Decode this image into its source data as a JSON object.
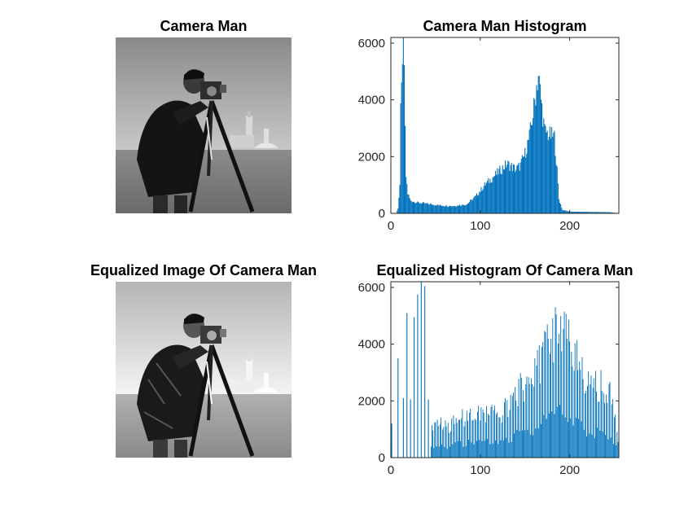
{
  "panels": {
    "original_image": {
      "title": "Camera Man"
    },
    "original_histogram": {
      "title": "Camera Man Histogram"
    },
    "equalized_image": {
      "title": "Equalized Image Of Camera Man"
    },
    "equalized_histogram": {
      "title": "Equalized Histogram Of Camera Man"
    }
  },
  "chart_data": [
    {
      "type": "bar",
      "title": "Camera Man Histogram",
      "xlabel": "",
      "ylabel": "",
      "xlim": [
        0,
        255
      ],
      "ylim": [
        0,
        6200
      ],
      "xticks": [
        0,
        100,
        200
      ],
      "yticks": [
        0,
        2000,
        4000,
        6000
      ],
      "color": "#0072BD",
      "bins": [
        0,
        255
      ],
      "anchors": [
        [
          0,
          0
        ],
        [
          6,
          0
        ],
        [
          8,
          180
        ],
        [
          10,
          900
        ],
        [
          11,
          3600
        ],
        [
          12,
          5000
        ],
        [
          13,
          4700
        ],
        [
          14,
          6200
        ],
        [
          15,
          5300
        ],
        [
          16,
          2800
        ],
        [
          17,
          1300
        ],
        [
          19,
          700
        ],
        [
          22,
          450
        ],
        [
          30,
          380
        ],
        [
          45,
          320
        ],
        [
          55,
          280
        ],
        [
          70,
          260
        ],
        [
          85,
          320
        ],
        [
          95,
          600
        ],
        [
          105,
          1000
        ],
        [
          115,
          1300
        ],
        [
          125,
          1600
        ],
        [
          130,
          1750
        ],
        [
          135,
          1650
        ],
        [
          140,
          1550
        ],
        [
          145,
          1700
        ],
        [
          150,
          2100
        ],
        [
          155,
          2700
        ],
        [
          160,
          3700
        ],
        [
          163,
          4500
        ],
        [
          165,
          4900
        ],
        [
          168,
          4000
        ],
        [
          172,
          2900
        ],
        [
          178,
          2750
        ],
        [
          183,
          2700
        ],
        [
          186,
          1500
        ],
        [
          188,
          500
        ],
        [
          192,
          120
        ],
        [
          200,
          60
        ],
        [
          245,
          40
        ],
        [
          255,
          0
        ]
      ],
      "tick_labels_x": [
        "0",
        "100",
        "200"
      ],
      "tick_labels_y": [
        "0",
        "2000",
        "4000",
        "6000"
      ]
    },
    {
      "type": "bar",
      "title": "Equalized Histogram Of Camera Man",
      "xlabel": "",
      "ylabel": "",
      "xlim": [
        0,
        255
      ],
      "ylim": [
        0,
        6200
      ],
      "xticks": [
        0,
        100,
        200
      ],
      "yticks": [
        0,
        2000,
        4000,
        6000
      ],
      "color": "#0072BD",
      "spikes": [
        [
          0,
          700
        ],
        [
          1,
          1200
        ],
        [
          8,
          3500
        ],
        [
          14,
          2100
        ],
        [
          18,
          5100
        ],
        [
          22,
          2050
        ],
        [
          26,
          4950
        ],
        [
          30,
          5750
        ],
        [
          34,
          6200
        ],
        [
          38,
          6050
        ],
        [
          42,
          2050
        ]
      ],
      "dense_start": 45,
      "anchors": [
        [
          45,
          1200
        ],
        [
          55,
          1300
        ],
        [
          65,
          1150
        ],
        [
          75,
          1500
        ],
        [
          85,
          1550
        ],
        [
          95,
          1700
        ],
        [
          105,
          1750
        ],
        [
          115,
          1700
        ],
        [
          120,
          1600
        ],
        [
          130,
          1900
        ],
        [
          140,
          2500
        ],
        [
          150,
          2700
        ],
        [
          160,
          3000
        ],
        [
          170,
          4000
        ],
        [
          178,
          4500
        ],
        [
          185,
          4850
        ],
        [
          192,
          4700
        ],
        [
          200,
          4200
        ],
        [
          210,
          3500
        ],
        [
          220,
          2800
        ],
        [
          235,
          2700
        ],
        [
          245,
          2600
        ],
        [
          250,
          1500
        ],
        [
          255,
          600
        ]
      ],
      "tick_labels_x": [
        "0",
        "100",
        "200"
      ],
      "tick_labels_y": [
        "0",
        "2000",
        "4000",
        "6000"
      ]
    }
  ]
}
